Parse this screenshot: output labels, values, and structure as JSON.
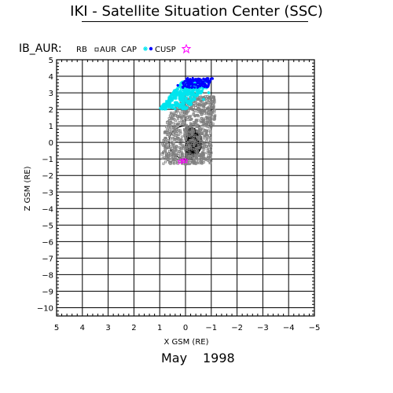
{
  "header": {
    "title": "IKI - Satellite Situation Center (SSC)"
  },
  "dataset_label": "IB_AUR:",
  "footer": {
    "month": "May",
    "year": "1998"
  },
  "legend": [
    {
      "label": "RB",
      "marker": "none",
      "color": "#808080"
    },
    {
      "label": "AUR",
      "marker": "square-open",
      "color": "#808080"
    },
    {
      "label": "CAP",
      "marker": "asterisk",
      "color": "#00e5ee"
    },
    {
      "label": "CUSP",
      "marker": "dot",
      "color": "#0000ff"
    },
    {
      "label": "",
      "marker": "star-open",
      "color": "#ff00ff"
    }
  ],
  "chart_data": {
    "type": "scatter",
    "xlabel": "X GSM (RE)",
    "ylabel": "Z GSM (RE)",
    "xlim": [
      5,
      -5
    ],
    "ylim": [
      -10.5,
      5
    ],
    "x_reversed": true,
    "grid": true,
    "x_ticks": [
      5,
      4,
      3,
      2,
      1,
      0,
      -1,
      -2,
      -3,
      -4,
      -5
    ],
    "x_tick_labels": [
      "5",
      "4",
      "3",
      "2",
      "1",
      "0",
      "−1",
      "−2",
      "−3",
      "−4",
      "−5"
    ],
    "y_tick_labels_top_to_bottom": [
      "5",
      "4",
      "3",
      "2",
      "1",
      "0",
      "−1",
      "−2",
      "−3",
      "−4",
      "−5",
      "−6",
      "−7",
      "−8",
      "−9",
      "−10"
    ],
    "earth": {
      "center": [
        0,
        0
      ],
      "radius": 1,
      "night_side": "negative-x"
    },
    "series": [
      {
        "name": "AUR",
        "color": "#808080",
        "region": "band around Earth, x 1.0 to -1.0, z -1.3 to 2.8",
        "points": [
          [
            0.9,
            -0.7
          ],
          [
            0.8,
            0.6
          ],
          [
            0.7,
            1.2
          ],
          [
            0.5,
            1.5
          ],
          [
            0.3,
            1.9
          ],
          [
            0.1,
            2.2
          ],
          [
            -0.1,
            2.4
          ],
          [
            -0.3,
            2.5
          ],
          [
            -0.5,
            2.6
          ],
          [
            -0.7,
            2.7
          ],
          [
            -0.9,
            2.4
          ],
          [
            -0.9,
            1.8
          ],
          [
            -0.8,
            1.2
          ],
          [
            0.6,
            -1.2
          ],
          [
            0.3,
            -1.25
          ],
          [
            0.0,
            -1.3
          ],
          [
            -0.3,
            -1.2
          ],
          [
            0.4,
            0.3
          ],
          [
            0.2,
            1.6
          ],
          [
            -0.4,
            2.1
          ]
        ]
      },
      {
        "name": "CAP",
        "color": "#00e5ee",
        "region": "x 0.9 to -1.0, z 2.0 to 3.7",
        "points": [
          [
            0.8,
            2.2
          ],
          [
            0.6,
            2.4
          ],
          [
            0.4,
            2.7
          ],
          [
            0.2,
            3.0
          ],
          [
            0.0,
            3.2
          ],
          [
            -0.2,
            3.3
          ],
          [
            -0.4,
            3.4
          ],
          [
            -0.6,
            3.5
          ],
          [
            -0.8,
            3.3
          ],
          [
            -0.9,
            3.0
          ],
          [
            -0.7,
            2.6
          ],
          [
            0.5,
            2.1
          ],
          [
            0.1,
            2.8
          ],
          [
            -0.3,
            3.1
          ]
        ]
      },
      {
        "name": "CUSP",
        "color": "#0000ff",
        "region": "x 0.4 to -1.0, z 3.3 to 3.9",
        "points": [
          [
            0.3,
            3.45
          ],
          [
            0.1,
            3.6
          ],
          [
            -0.1,
            3.7
          ],
          [
            -0.3,
            3.8
          ],
          [
            -0.5,
            3.85
          ],
          [
            -0.7,
            3.85
          ],
          [
            -0.9,
            3.7
          ],
          [
            -0.8,
            3.4
          ],
          [
            -0.4,
            3.5
          ],
          [
            0.0,
            3.4
          ]
        ]
      },
      {
        "name": "",
        "color": "#ff00ff",
        "marker": "star-open",
        "points": [
          [
            0.0,
            -1.1
          ],
          [
            0.2,
            -1.15
          ],
          [
            0.1,
            -1.1
          ]
        ]
      }
    ]
  }
}
